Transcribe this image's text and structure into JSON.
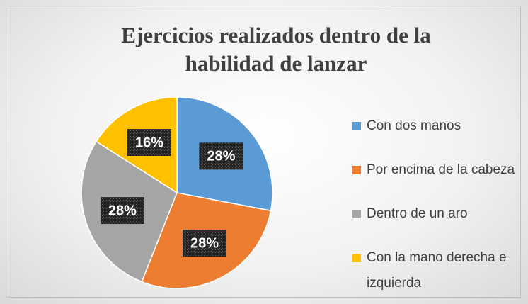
{
  "chart_data": {
    "type": "pie",
    "title": "Ejercicios realizados dentro de la habilidad de lanzar",
    "categories": [
      "Con dos manos",
      "Por encima de la cabeza",
      "Dentro de un aro",
      "Con la mano derecha e izquierda"
    ],
    "values": [
      28,
      28,
      28,
      16
    ],
    "value_labels": [
      "28%",
      "28%",
      "28%",
      "16%"
    ],
    "colors": [
      "#5b9bd5",
      "#ed7d31",
      "#a5a5a5",
      "#ffc000"
    ],
    "legend": "right"
  }
}
